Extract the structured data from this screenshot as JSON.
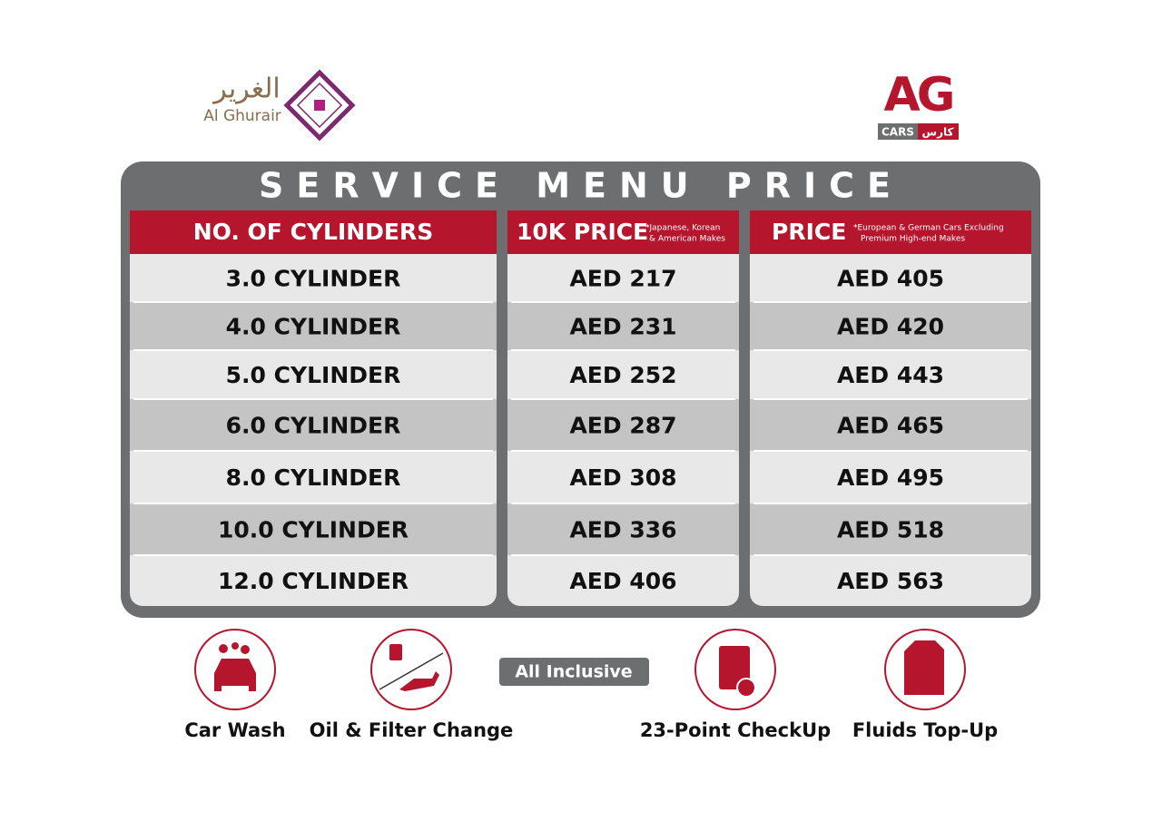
{
  "logos": {
    "left_arabic": "الغرير",
    "left_name": "Al Ghurair",
    "right_mark": "AG",
    "right_cars": "CARS",
    "right_arabic": "كارس"
  },
  "title": "SERVICE MENU PRICE",
  "table": {
    "headers": [
      {
        "label": "NO. OF CYLINDERS"
      },
      {
        "label": "10K PRICE",
        "note": [
          "*Japanese, Korean",
          "& American Makes"
        ]
      },
      {
        "label": "PRICE",
        "note": [
          "*European & German Cars Excluding",
          "Premium High-end Makes"
        ]
      }
    ],
    "rows": [
      [
        "3.0 CYLINDER",
        "AED 217",
        "AED 405"
      ],
      [
        "4.0 CYLINDER",
        "AED 231",
        "AED 420"
      ],
      [
        "5.0 CYLINDER",
        "AED 252",
        "AED 443"
      ],
      [
        "6.0 CYLINDER",
        "AED 287",
        "AED 465"
      ],
      [
        "8.0 CYLINDER",
        "AED 308",
        "AED 495"
      ],
      [
        "10.0 CYLINDER",
        "AED 336",
        "AED 518"
      ],
      [
        "12.0 CYLINDER",
        "AED 406",
        "AED 563"
      ]
    ]
  },
  "services": [
    "Car Wash",
    "Oil & Filter Change",
    "23-Point CheckUp",
    "Fluids Top-Up"
  ],
  "badge": "All Inclusive"
}
